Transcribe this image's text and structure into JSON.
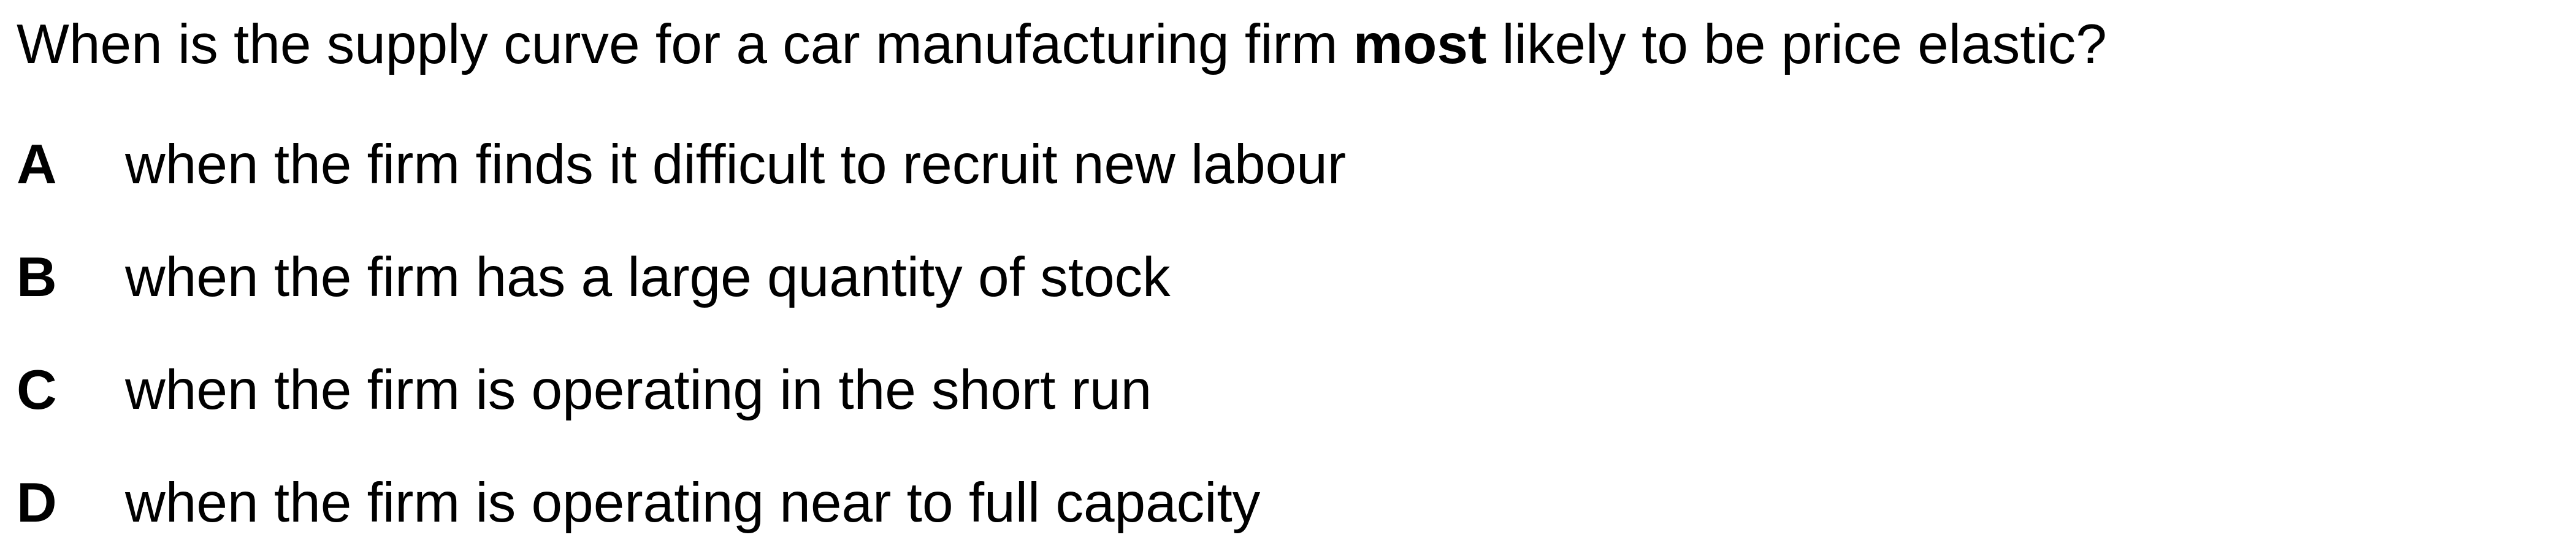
{
  "question": {
    "before": "When is the supply curve for a car manufacturing firm ",
    "emphasis": "most",
    "after": " likely to be price elastic?"
  },
  "options": [
    {
      "letter": "A",
      "text": "when the firm finds it difficult to recruit new labour"
    },
    {
      "letter": "B",
      "text": "when the firm has a large quantity of stock"
    },
    {
      "letter": "C",
      "text": "when the firm is operating in the short run"
    },
    {
      "letter": "D",
      "text": "when the firm is operating near to full capacity"
    }
  ]
}
